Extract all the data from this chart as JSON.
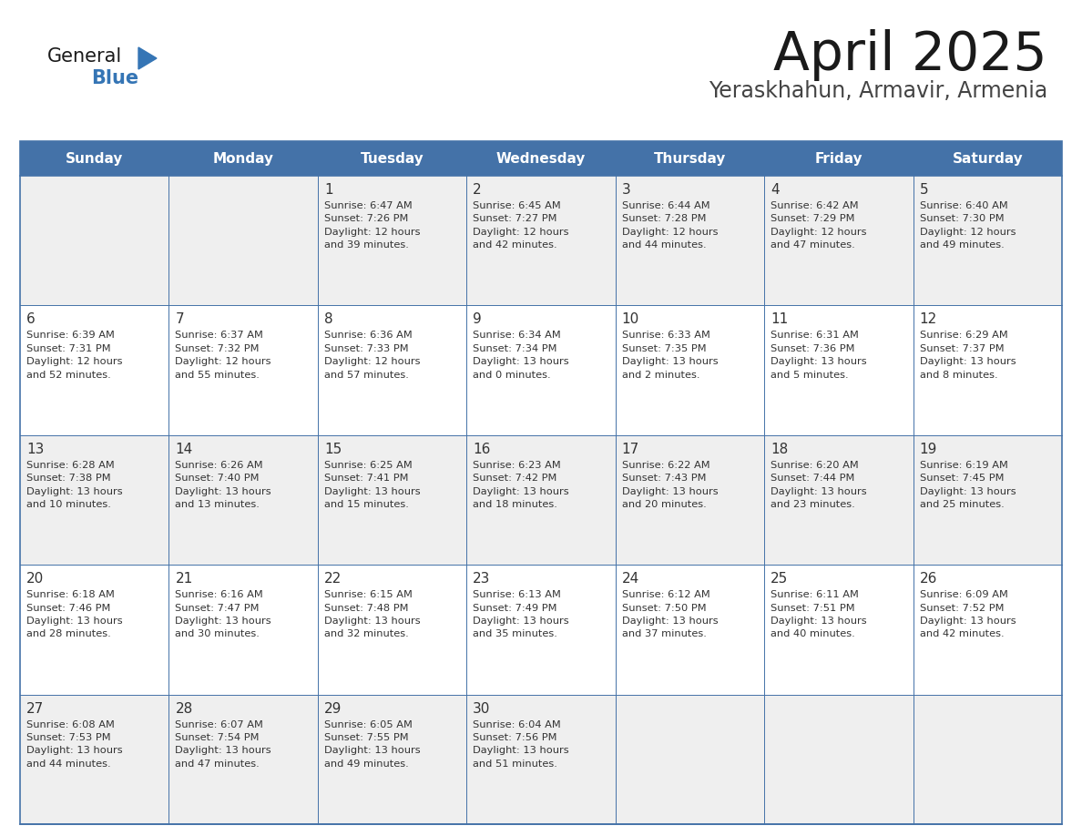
{
  "title": "April 2025",
  "subtitle": "Yeraskhahun, Armavir, Armenia",
  "days_of_week": [
    "Sunday",
    "Monday",
    "Tuesday",
    "Wednesday",
    "Thursday",
    "Friday",
    "Saturday"
  ],
  "header_bg": "#4472A8",
  "header_text": "#FFFFFF",
  "row_bg_odd": "#EFEFEF",
  "row_bg_even": "#FFFFFF",
  "cell_text": "#333333",
  "border_color": "#4472A8",
  "title_color": "#1a1a1a",
  "subtitle_color": "#444444",
  "logo_general_color": "#1a1a1a",
  "logo_blue_color": "#3575b5",
  "calendar": [
    [
      {
        "day": "",
        "info": ""
      },
      {
        "day": "",
        "info": ""
      },
      {
        "day": "1",
        "info": "Sunrise: 6:47 AM\nSunset: 7:26 PM\nDaylight: 12 hours\nand 39 minutes."
      },
      {
        "day": "2",
        "info": "Sunrise: 6:45 AM\nSunset: 7:27 PM\nDaylight: 12 hours\nand 42 minutes."
      },
      {
        "day": "3",
        "info": "Sunrise: 6:44 AM\nSunset: 7:28 PM\nDaylight: 12 hours\nand 44 minutes."
      },
      {
        "day": "4",
        "info": "Sunrise: 6:42 AM\nSunset: 7:29 PM\nDaylight: 12 hours\nand 47 minutes."
      },
      {
        "day": "5",
        "info": "Sunrise: 6:40 AM\nSunset: 7:30 PM\nDaylight: 12 hours\nand 49 minutes."
      }
    ],
    [
      {
        "day": "6",
        "info": "Sunrise: 6:39 AM\nSunset: 7:31 PM\nDaylight: 12 hours\nand 52 minutes."
      },
      {
        "day": "7",
        "info": "Sunrise: 6:37 AM\nSunset: 7:32 PM\nDaylight: 12 hours\nand 55 minutes."
      },
      {
        "day": "8",
        "info": "Sunrise: 6:36 AM\nSunset: 7:33 PM\nDaylight: 12 hours\nand 57 minutes."
      },
      {
        "day": "9",
        "info": "Sunrise: 6:34 AM\nSunset: 7:34 PM\nDaylight: 13 hours\nand 0 minutes."
      },
      {
        "day": "10",
        "info": "Sunrise: 6:33 AM\nSunset: 7:35 PM\nDaylight: 13 hours\nand 2 minutes."
      },
      {
        "day": "11",
        "info": "Sunrise: 6:31 AM\nSunset: 7:36 PM\nDaylight: 13 hours\nand 5 minutes."
      },
      {
        "day": "12",
        "info": "Sunrise: 6:29 AM\nSunset: 7:37 PM\nDaylight: 13 hours\nand 8 minutes."
      }
    ],
    [
      {
        "day": "13",
        "info": "Sunrise: 6:28 AM\nSunset: 7:38 PM\nDaylight: 13 hours\nand 10 minutes."
      },
      {
        "day": "14",
        "info": "Sunrise: 6:26 AM\nSunset: 7:40 PM\nDaylight: 13 hours\nand 13 minutes."
      },
      {
        "day": "15",
        "info": "Sunrise: 6:25 AM\nSunset: 7:41 PM\nDaylight: 13 hours\nand 15 minutes."
      },
      {
        "day": "16",
        "info": "Sunrise: 6:23 AM\nSunset: 7:42 PM\nDaylight: 13 hours\nand 18 minutes."
      },
      {
        "day": "17",
        "info": "Sunrise: 6:22 AM\nSunset: 7:43 PM\nDaylight: 13 hours\nand 20 minutes."
      },
      {
        "day": "18",
        "info": "Sunrise: 6:20 AM\nSunset: 7:44 PM\nDaylight: 13 hours\nand 23 minutes."
      },
      {
        "day": "19",
        "info": "Sunrise: 6:19 AM\nSunset: 7:45 PM\nDaylight: 13 hours\nand 25 minutes."
      }
    ],
    [
      {
        "day": "20",
        "info": "Sunrise: 6:18 AM\nSunset: 7:46 PM\nDaylight: 13 hours\nand 28 minutes."
      },
      {
        "day": "21",
        "info": "Sunrise: 6:16 AM\nSunset: 7:47 PM\nDaylight: 13 hours\nand 30 minutes."
      },
      {
        "day": "22",
        "info": "Sunrise: 6:15 AM\nSunset: 7:48 PM\nDaylight: 13 hours\nand 32 minutes."
      },
      {
        "day": "23",
        "info": "Sunrise: 6:13 AM\nSunset: 7:49 PM\nDaylight: 13 hours\nand 35 minutes."
      },
      {
        "day": "24",
        "info": "Sunrise: 6:12 AM\nSunset: 7:50 PM\nDaylight: 13 hours\nand 37 minutes."
      },
      {
        "day": "25",
        "info": "Sunrise: 6:11 AM\nSunset: 7:51 PM\nDaylight: 13 hours\nand 40 minutes."
      },
      {
        "day": "26",
        "info": "Sunrise: 6:09 AM\nSunset: 7:52 PM\nDaylight: 13 hours\nand 42 minutes."
      }
    ],
    [
      {
        "day": "27",
        "info": "Sunrise: 6:08 AM\nSunset: 7:53 PM\nDaylight: 13 hours\nand 44 minutes."
      },
      {
        "day": "28",
        "info": "Sunrise: 6:07 AM\nSunset: 7:54 PM\nDaylight: 13 hours\nand 47 minutes."
      },
      {
        "day": "29",
        "info": "Sunrise: 6:05 AM\nSunset: 7:55 PM\nDaylight: 13 hours\nand 49 minutes."
      },
      {
        "day": "30",
        "info": "Sunrise: 6:04 AM\nSunset: 7:56 PM\nDaylight: 13 hours\nand 51 minutes."
      },
      {
        "day": "",
        "info": ""
      },
      {
        "day": "",
        "info": ""
      },
      {
        "day": "",
        "info": ""
      }
    ]
  ]
}
